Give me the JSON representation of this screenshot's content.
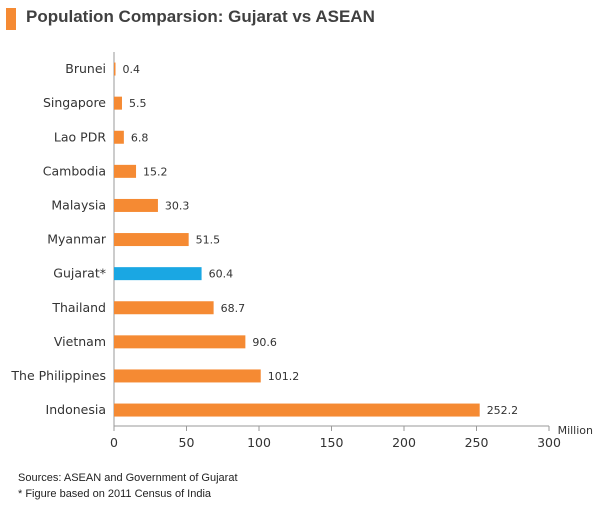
{
  "header": {
    "title": "Population Comparsion: Gujarat vs ASEAN",
    "accent_color": "#f58a33"
  },
  "chart_data": {
    "type": "bar",
    "orientation": "horizontal",
    "categories": [
      "Brunei",
      "Singapore",
      "Lao PDR",
      "Cambodia",
      "Malaysia",
      "Myanmar",
      "Gujarat*",
      "Thailand",
      "Vietnam",
      "The Philippines",
      "Indonesia"
    ],
    "values": [
      0.4,
      5.5,
      6.8,
      15.2,
      30.3,
      51.5,
      60.4,
      68.7,
      90.6,
      101.2,
      252.2
    ],
    "value_labels": [
      "0.4",
      "5.5",
      "6.8",
      "15.2",
      "30.3",
      "51.5",
      "60.4",
      "68.7",
      "90.6",
      "101.2",
      "252.2"
    ],
    "highlight_category": "Gujarat*",
    "bar_color": "#f58a33",
    "highlight_color": "#1aa7e3",
    "xlim": [
      0,
      300
    ],
    "xticks": [
      0,
      50,
      100,
      150,
      200,
      250,
      300
    ],
    "unit_label": "Million",
    "grid": false,
    "legend": "none"
  },
  "footnotes": {
    "source": "Sources: ASEAN and Government of Gujarat",
    "note": "* Figure based on 2011 Census of India"
  }
}
